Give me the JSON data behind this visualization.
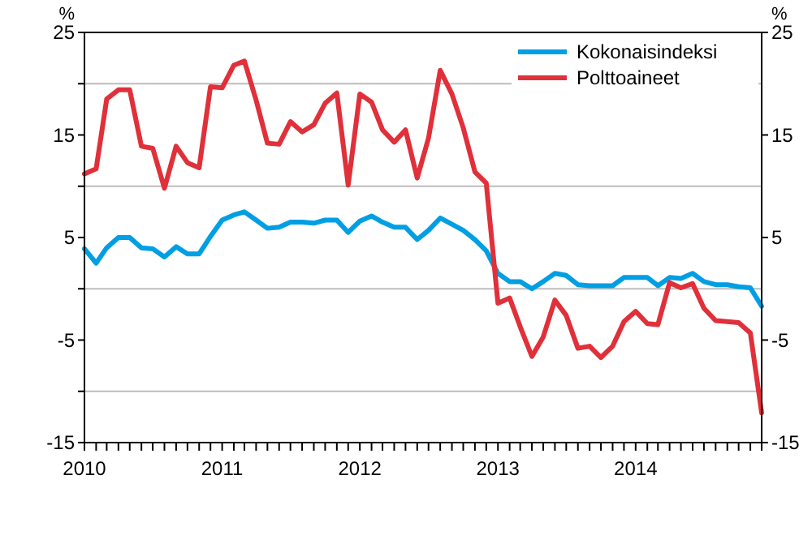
{
  "chart_data": {
    "type": "line",
    "ylabel": "%",
    "y2label": "%",
    "x": [
      "2010-01",
      "2010-02",
      "2010-03",
      "2010-04",
      "2010-05",
      "2010-06",
      "2010-07",
      "2010-08",
      "2010-09",
      "2010-10",
      "2010-11",
      "2010-12",
      "2011-01",
      "2011-02",
      "2011-03",
      "2011-04",
      "2011-05",
      "2011-06",
      "2011-07",
      "2011-08",
      "2011-09",
      "2011-10",
      "2011-11",
      "2011-12",
      "2012-01",
      "2012-02",
      "2012-03",
      "2012-04",
      "2012-05",
      "2012-06",
      "2012-07",
      "2012-08",
      "2012-09",
      "2012-10",
      "2012-11",
      "2012-12",
      "2013-01",
      "2013-02",
      "2013-03",
      "2013-04",
      "2013-05",
      "2013-06",
      "2013-07",
      "2013-08",
      "2013-09",
      "2013-10",
      "2013-11",
      "2013-12",
      "2014-01",
      "2014-02",
      "2014-03",
      "2014-04",
      "2014-05",
      "2014-06",
      "2014-07",
      "2014-08",
      "2014-09",
      "2014-10",
      "2014-11",
      "2014-12"
    ],
    "series": [
      {
        "name": "Kokonaisindeksi",
        "color": "#009fe3",
        "values": [
          3.9,
          2.5,
          4.0,
          5.0,
          5.0,
          4.0,
          3.9,
          3.1,
          4.1,
          3.4,
          3.4,
          5.1,
          6.7,
          7.2,
          7.5,
          6.7,
          5.9,
          6.0,
          6.5,
          6.5,
          6.4,
          6.7,
          6.7,
          5.5,
          6.6,
          7.1,
          6.5,
          6.0,
          6.0,
          4.8,
          5.7,
          6.9,
          6.3,
          5.7,
          4.8,
          3.7,
          1.5,
          0.7,
          0.7,
          0.0,
          0.7,
          1.5,
          1.3,
          0.4,
          0.3,
          0.3,
          0.3,
          1.1,
          1.1,
          1.1,
          0.3,
          1.1,
          1.0,
          1.5,
          0.7,
          0.4,
          0.4,
          0.2,
          0.1,
          -1.7
        ]
      },
      {
        "name": "Polttoaineet",
        "color": "#e0303a",
        "values": [
          11.2,
          11.7,
          18.5,
          19.4,
          19.4,
          13.9,
          13.7,
          9.8,
          13.9,
          12.3,
          11.8,
          19.7,
          19.6,
          21.8,
          22.2,
          18.4,
          14.2,
          14.1,
          16.3,
          15.3,
          16.0,
          18.1,
          19.1,
          10.1,
          19.0,
          18.2,
          15.5,
          14.3,
          15.5,
          10.8,
          14.7,
          21.3,
          19.0,
          15.7,
          11.4,
          10.3,
          -1.4,
          -0.9,
          -3.7,
          -6.6,
          -4.7,
          -1.1,
          -2.6,
          -5.8,
          -5.6,
          -6.7,
          -5.6,
          -3.2,
          -2.2,
          -3.4,
          -3.5,
          0.6,
          0.1,
          0.5,
          -1.9,
          -3.1,
          -3.2,
          -3.3,
          -4.3,
          -12.1
        ]
      }
    ],
    "xlim": [
      "2010-01",
      "2014-12"
    ],
    "xticks": [
      {
        "value": "2010-01",
        "label": "2010"
      },
      {
        "value": "2010-02",
        "label": null
      },
      {
        "value": "2010-03",
        "label": null
      },
      {
        "value": "2010-04",
        "label": null
      },
      {
        "value": "2010-05",
        "label": null
      },
      {
        "value": "2010-06",
        "label": null
      },
      {
        "value": "2010-07",
        "label": null
      },
      {
        "value": "2010-08",
        "label": null
      },
      {
        "value": "2010-09",
        "label": null
      },
      {
        "value": "2010-10",
        "label": null
      },
      {
        "value": "2010-11",
        "label": null
      },
      {
        "value": "2010-12",
        "label": null
      },
      {
        "value": "2011-01",
        "label": "2011"
      },
      {
        "value": "2011-02",
        "label": null
      },
      {
        "value": "2011-03",
        "label": null
      },
      {
        "value": "2011-04",
        "label": null
      },
      {
        "value": "2011-05",
        "label": null
      },
      {
        "value": "2011-06",
        "label": null
      },
      {
        "value": "2011-07",
        "label": null
      },
      {
        "value": "2011-08",
        "label": null
      },
      {
        "value": "2011-09",
        "label": null
      },
      {
        "value": "2011-10",
        "label": null
      },
      {
        "value": "2011-11",
        "label": null
      },
      {
        "value": "2011-12",
        "label": null
      },
      {
        "value": "2012-01",
        "label": "2012"
      },
      {
        "value": "2012-02",
        "label": null
      },
      {
        "value": "2012-03",
        "label": null
      },
      {
        "value": "2012-04",
        "label": null
      },
      {
        "value": "2012-05",
        "label": null
      },
      {
        "value": "2012-06",
        "label": null
      },
      {
        "value": "2012-07",
        "label": null
      },
      {
        "value": "2012-08",
        "label": null
      },
      {
        "value": "2012-09",
        "label": null
      },
      {
        "value": "2012-10",
        "label": null
      },
      {
        "value": "2012-11",
        "label": null
      },
      {
        "value": "2012-12",
        "label": null
      },
      {
        "value": "2013-01",
        "label": "2013"
      },
      {
        "value": "2013-02",
        "label": null
      },
      {
        "value": "2013-03",
        "label": null
      },
      {
        "value": "2013-04",
        "label": null
      },
      {
        "value": "2013-05",
        "label": null
      },
      {
        "value": "2013-06",
        "label": null
      },
      {
        "value": "2013-07",
        "label": null
      },
      {
        "value": "2013-08",
        "label": null
      },
      {
        "value": "2013-09",
        "label": null
      },
      {
        "value": "2013-10",
        "label": null
      },
      {
        "value": "2013-11",
        "label": null
      },
      {
        "value": "2013-12",
        "label": null
      },
      {
        "value": "2014-01",
        "label": "2014"
      },
      {
        "value": "2014-02",
        "label": null
      },
      {
        "value": "2014-03",
        "label": null
      },
      {
        "value": "2014-04",
        "label": null
      },
      {
        "value": "2014-05",
        "label": null
      },
      {
        "value": "2014-06",
        "label": null
      },
      {
        "value": "2014-07",
        "label": null
      },
      {
        "value": "2014-08",
        "label": null
      },
      {
        "value": "2014-09",
        "label": null
      },
      {
        "value": "2014-10",
        "label": null
      },
      {
        "value": "2014-11",
        "label": null
      },
      {
        "value": "2014-12",
        "label": null
      }
    ],
    "ylim": [
      -15,
      25
    ],
    "yticks": [
      -15,
      {
        "value": -10,
        "label": null
      },
      -5,
      {
        "value": 0,
        "label": null
      },
      5,
      {
        "value": 10,
        "label": null
      },
      15,
      {
        "value": 20,
        "label": null
      },
      25
    ],
    "y2lim": [
      -15,
      25
    ],
    "y2ticks": [
      -15,
      -5,
      5,
      15,
      25
    ],
    "grid": "y",
    "legend": "top right",
    "marker": "none",
    "line_style": "solid"
  }
}
